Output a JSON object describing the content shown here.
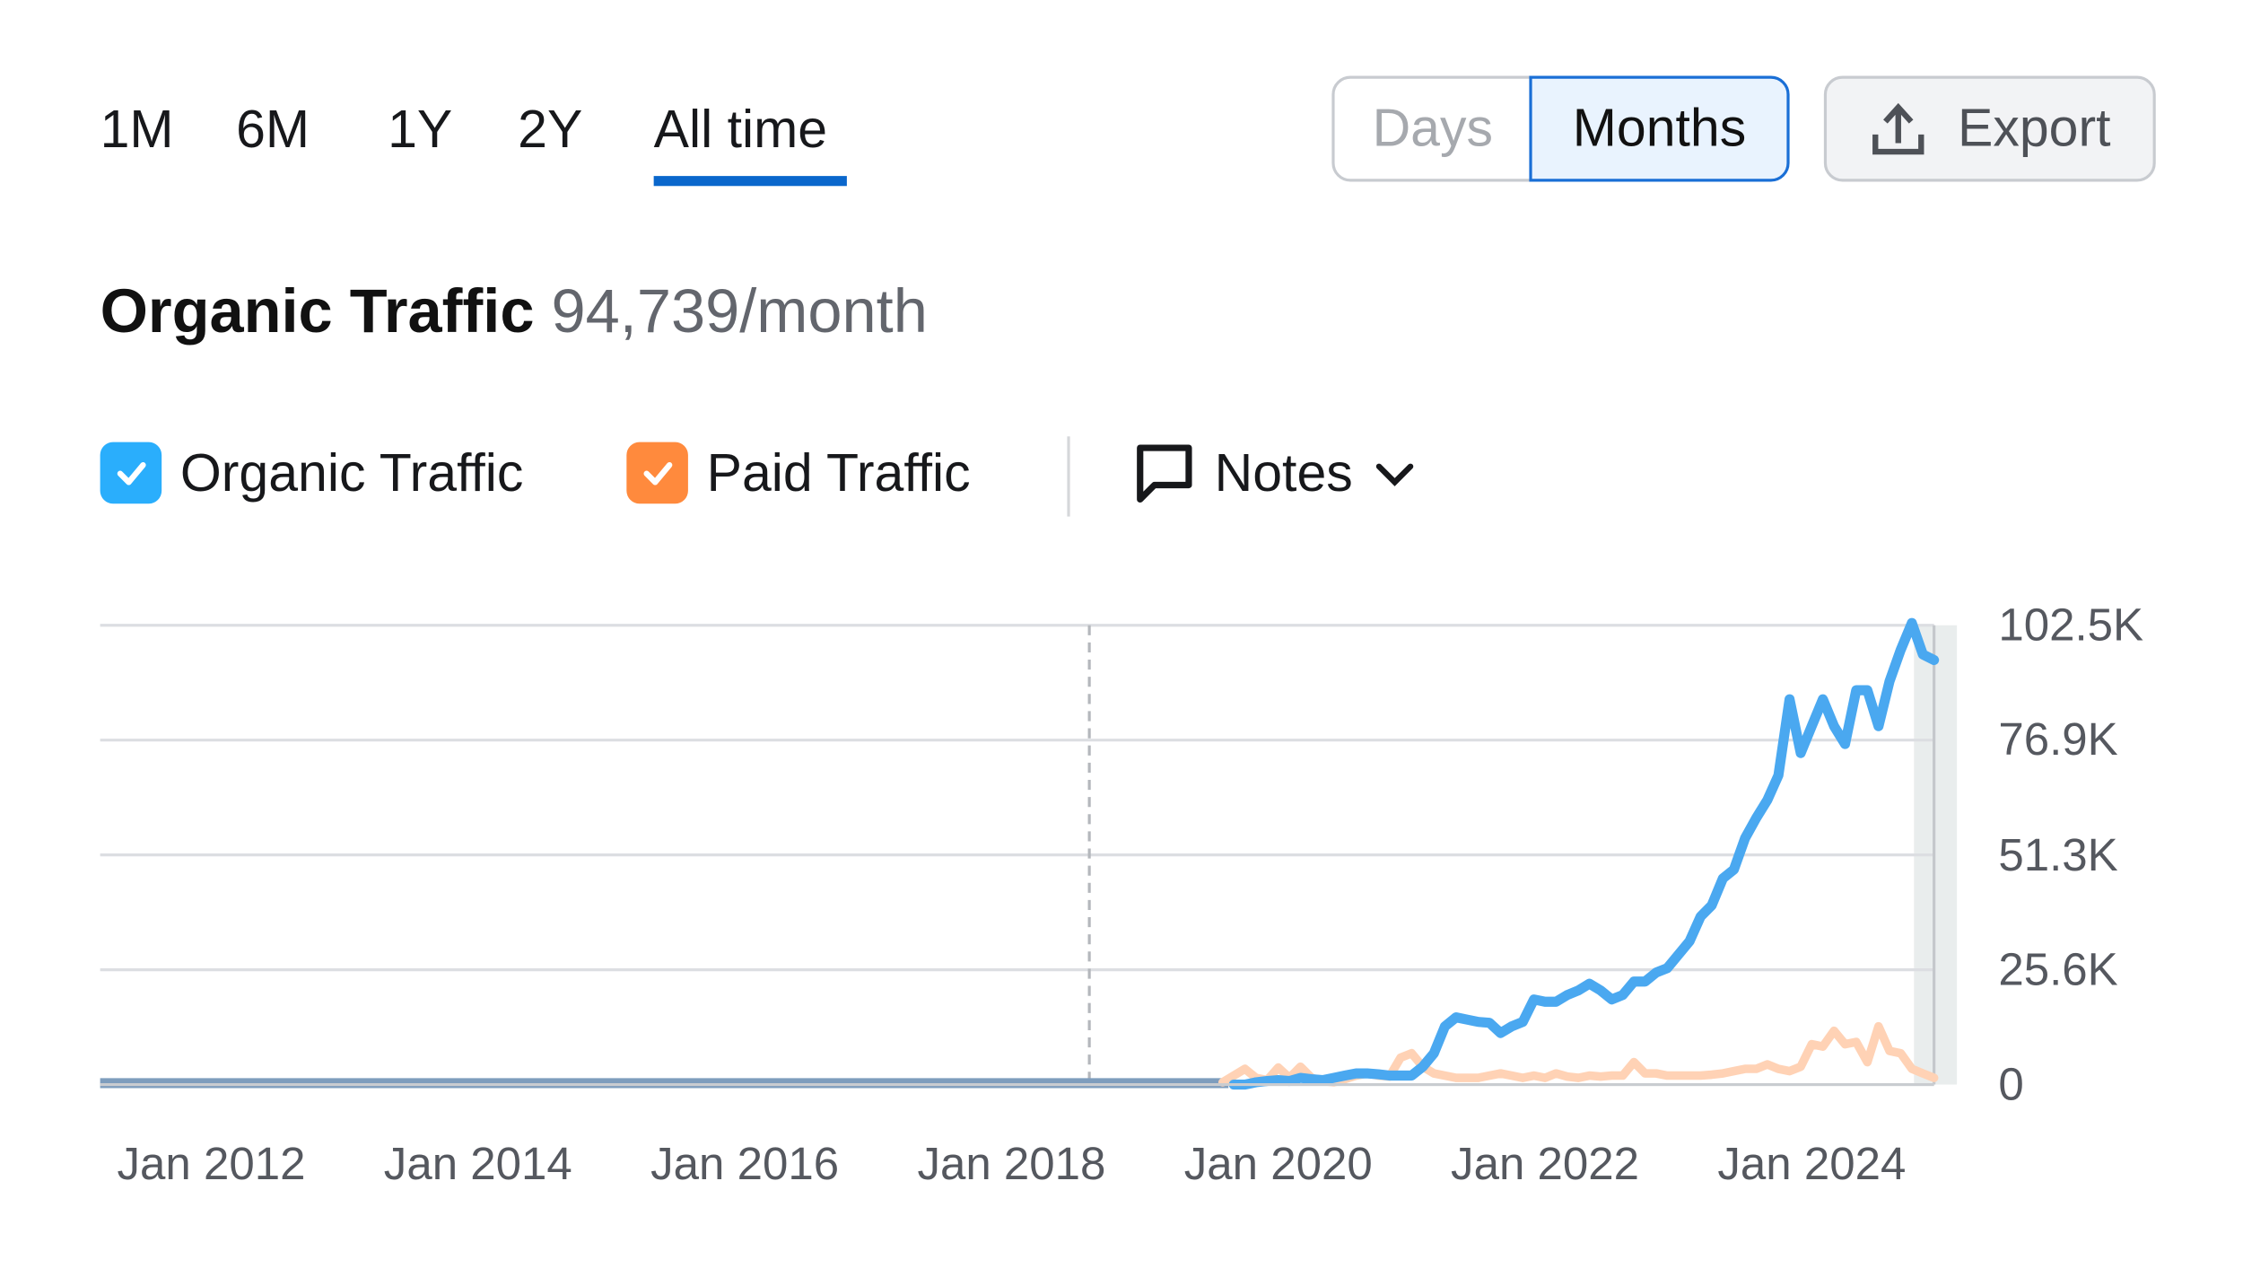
{
  "period_tabs": [
    {
      "label": "1M",
      "active": false
    },
    {
      "label": "6M",
      "active": false
    },
    {
      "label": "1Y",
      "active": false
    },
    {
      "label": "2Y",
      "active": false
    },
    {
      "label": "All time",
      "active": true
    }
  ],
  "granularity": {
    "days_label": "Days",
    "months_label": "Months",
    "selected": "Months"
  },
  "export": {
    "label": "Export",
    "icon": "upload-icon"
  },
  "headline": {
    "title": "Organic Traffic",
    "value": "94,739/month"
  },
  "legend": {
    "organic": {
      "label": "Organic Traffic",
      "checked": true,
      "color": "#2aaefc"
    },
    "paid": {
      "label": "Paid Traffic",
      "checked": true,
      "color": "#ff8a3d"
    },
    "notes": {
      "label": "Notes",
      "icon": "comment-icon"
    }
  },
  "colors": {
    "organic_line": "#4aa8f0",
    "paid_line": "#ffd2b5",
    "accent": "#0a67cc"
  },
  "chart_data": {
    "type": "line",
    "interval": "monthly",
    "x_range": [
      "2011-03",
      "2024-12"
    ],
    "x_ticks": [
      "Jan 2012",
      "Jan 2014",
      "Jan 2016",
      "Jan 2018",
      "Jan 2020",
      "Jan 2022",
      "Jan 2024"
    ],
    "y_ticks": [
      "0",
      "25.6K",
      "51.3K",
      "76.9K",
      "102.5K"
    ],
    "ylim": [
      0,
      102500
    ],
    "y_axis_position": "right",
    "grid": true,
    "annotation_marker_date": "2018-08",
    "highlighted_month": "2024-12",
    "series": [
      {
        "name": "Organic Traffic",
        "start": "2019-09",
        "values": [
          0,
          0,
          500,
          800,
          1000,
          800,
          1500,
          1200,
          1000,
          1500,
          2000,
          2500,
          2500,
          2300,
          2000,
          2000,
          2000,
          4000,
          7000,
          13000,
          15000,
          14500,
          14000,
          13800,
          11500,
          13000,
          14000,
          19000,
          18500,
          18500,
          20000,
          21000,
          22500,
          21000,
          19000,
          20000,
          23000,
          23000,
          25000,
          26000,
          29000,
          32000,
          37500,
          40000,
          46000,
          48000,
          55000,
          59500,
          63500,
          69000,
          86000,
          74000,
          80000,
          86000,
          80000,
          76000,
          88000,
          88000,
          80000,
          90000,
          97000,
          103000,
          96000,
          94739
        ]
      },
      {
        "name": "Paid Traffic",
        "start": "2019-08",
        "values": [
          500,
          2000,
          3500,
          1500,
          1000,
          3800,
          1500,
          4000,
          1500,
          800,
          500,
          1200,
          2000,
          2500,
          2000,
          1800,
          6000,
          7000,
          4000,
          2500,
          2000,
          1500,
          1500,
          1500,
          2000,
          2500,
          2000,
          1500,
          2000,
          1500,
          2500,
          1800,
          1500,
          2000,
          1800,
          2000,
          2000,
          5000,
          2500,
          2500,
          2000,
          2000,
          2000,
          2000,
          2200,
          2500,
          3000,
          3500,
          3500,
          4500,
          3500,
          3000,
          4000,
          9000,
          8500,
          12000,
          9000,
          9500,
          5000,
          13000,
          7500,
          7000,
          3500,
          2500,
          1500
        ]
      }
    ]
  }
}
